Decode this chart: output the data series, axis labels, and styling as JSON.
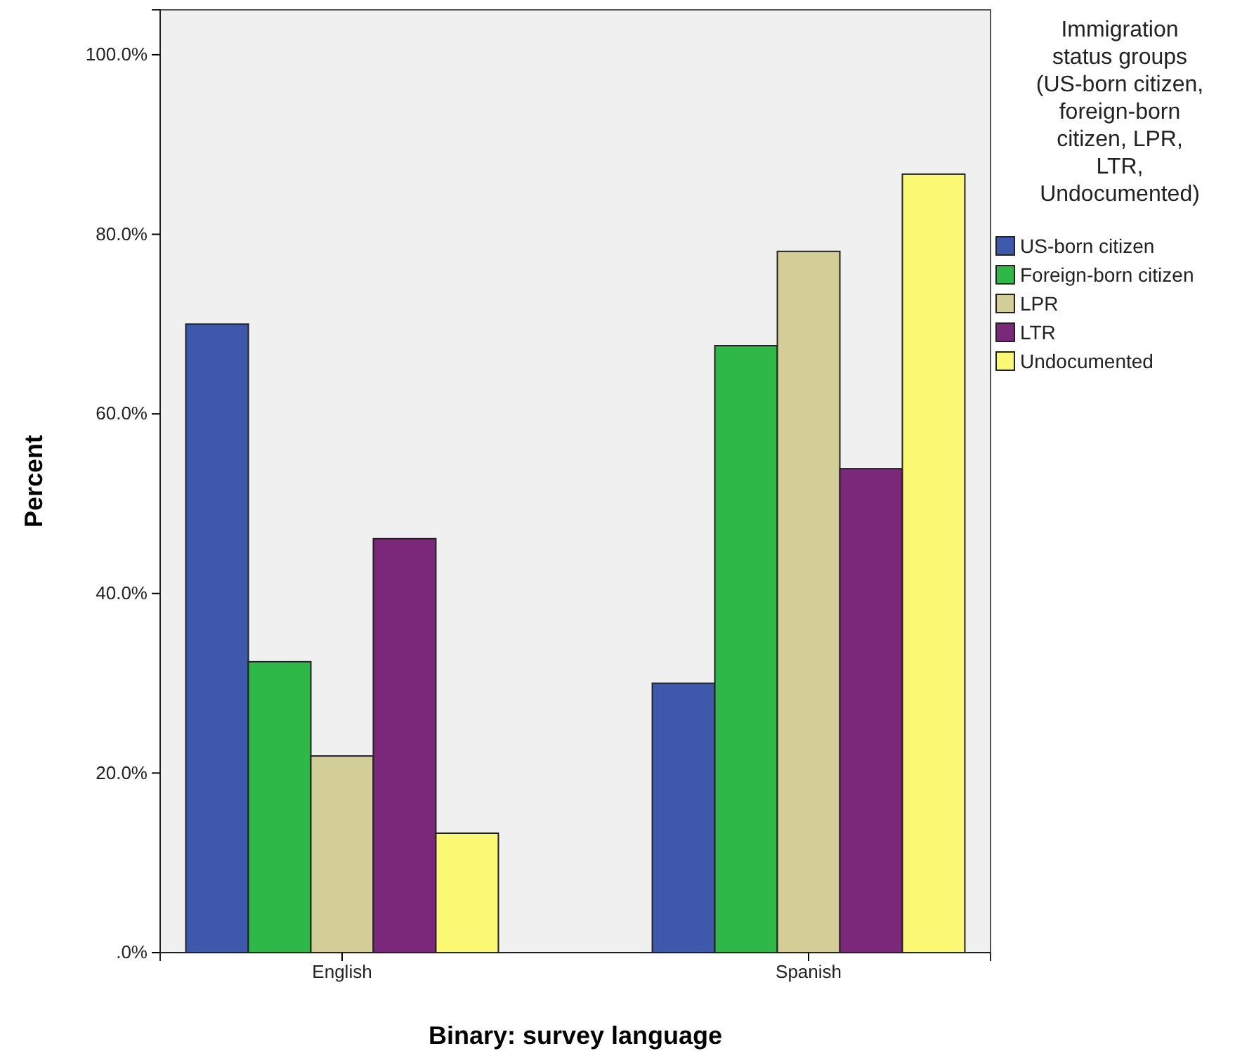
{
  "chart_data": {
    "type": "bar",
    "xlabel": "Binary: survey language",
    "ylabel": "Percent",
    "legend_title": "Immigration status groups (US-born citizen, foreign-born citizen, LPR, LTR, Undocumented)",
    "categories": [
      "English",
      "Spanish"
    ],
    "series": [
      {
        "name": "US-born citizen",
        "color": "#3e58ac",
        "values": [
          70.0,
          30.0
        ]
      },
      {
        "name": "Foreign-born citizen",
        "color": "#2eb848",
        "values": [
          32.4,
          67.6
        ]
      },
      {
        "name": "LPR",
        "color": "#d3ce97",
        "values": [
          21.9,
          78.1
        ]
      },
      {
        "name": "LTR",
        "color": "#7b287b",
        "values": [
          46.1,
          53.9
        ]
      },
      {
        "name": "Undocumented",
        "color": "#fbf873",
        "values": [
          13.3,
          86.7
        ]
      }
    ],
    "ylim": [
      0,
      105
    ],
    "yticks": [
      {
        "value": 0,
        "label": ".0%"
      },
      {
        "value": 20,
        "label": "20.0%"
      },
      {
        "value": 40,
        "label": "40.0%"
      },
      {
        "value": 60,
        "label": "60.0%"
      },
      {
        "value": 80,
        "label": "80.0%"
      },
      {
        "value": 100,
        "label": "100.0%"
      }
    ],
    "grid": false,
    "legend": "top right"
  }
}
